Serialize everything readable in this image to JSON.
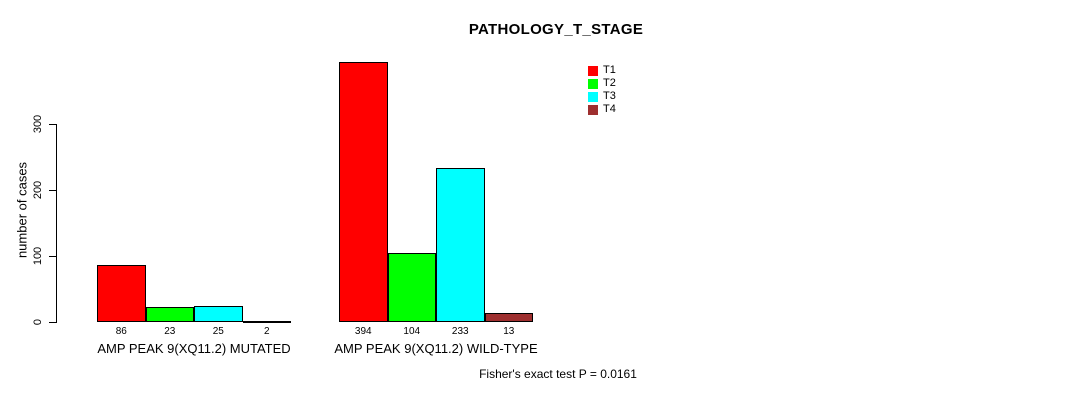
{
  "chart_data": {
    "type": "bar",
    "title": "PATHOLOGY_T_STAGE",
    "ylabel": "number of cases",
    "ylim": [
      0,
      394
    ],
    "yticks": [
      0,
      100,
      200,
      300
    ],
    "grid": false,
    "legend_position": "top-right",
    "categories": [
      "AMP PEAK 9(XQ11.2) MUTATED",
      "AMP PEAK 9(XQ11.2) WILD-TYPE"
    ],
    "series": [
      {
        "name": "T1",
        "color": "#FF0000",
        "values": [
          86,
          394
        ]
      },
      {
        "name": "T2",
        "color": "#00FF00",
        "values": [
          23,
          104
        ]
      },
      {
        "name": "T3",
        "color": "#00FFFF",
        "values": [
          25,
          233
        ]
      },
      {
        "name": "T4",
        "color": "#9E2F2F",
        "values": [
          2,
          13
        ]
      }
    ],
    "bar_value_labels": {
      "group1": [
        "86",
        "23",
        "25",
        "2"
      ],
      "group2": [
        "394",
        "104",
        "233",
        "13"
      ]
    },
    "annotation": "Fisher's exact test P = 0.0161",
    "axis_color": "#000000",
    "background_color": "#FFFFFF"
  }
}
